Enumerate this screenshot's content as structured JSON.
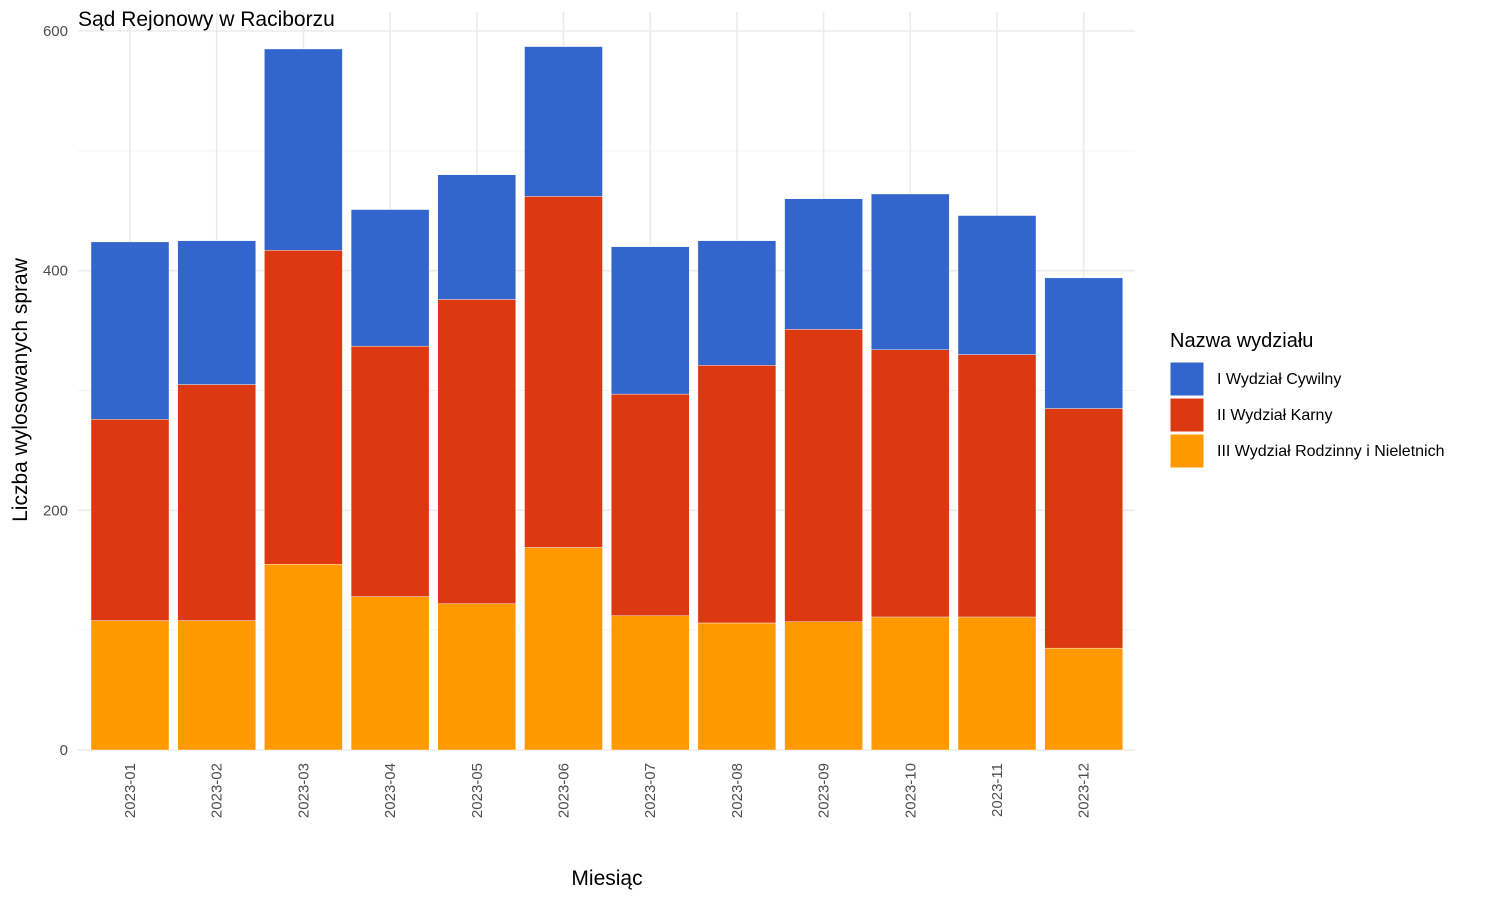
{
  "chart_data": {
    "type": "bar",
    "stacked": true,
    "title": "Sąd Rejonowy w Raciborzu",
    "xlabel": "Miesiąc",
    "ylabel": "Liczba wylosowanych spraw",
    "ylim": [
      0,
      600
    ],
    "yticks": [
      0,
      200,
      400,
      600
    ],
    "grid": true,
    "legend_position": "right",
    "legend_title": "Nazwa wydziału",
    "categories": [
      "2023-01",
      "2023-02",
      "2023-03",
      "2023-04",
      "2023-05",
      "2023-06",
      "2023-07",
      "2023-08",
      "2023-09",
      "2023-10",
      "2023-11",
      "2023-12"
    ],
    "series": [
      {
        "name": "III Wydział Rodzinny i Nieletnich",
        "color": "#FF9900",
        "values": [
          108,
          108,
          155,
          128,
          122,
          169,
          112,
          106,
          107,
          111,
          111,
          85
        ]
      },
      {
        "name": "II Wydział Karny",
        "color": "#DC3912",
        "values": [
          168,
          197,
          262,
          209,
          254,
          293,
          185,
          215,
          244,
          223,
          219,
          200
        ]
      },
      {
        "name": "I Wydział Cywilny",
        "color": "#3366CC",
        "values": [
          148,
          120,
          168,
          114,
          104,
          125,
          123,
          104,
          109,
          130,
          116,
          109
        ]
      }
    ],
    "legend_order": [
      "I Wydział Cywilny",
      "II Wydział Karny",
      "III Wydział Rodzinny i Nieletnich"
    ]
  }
}
